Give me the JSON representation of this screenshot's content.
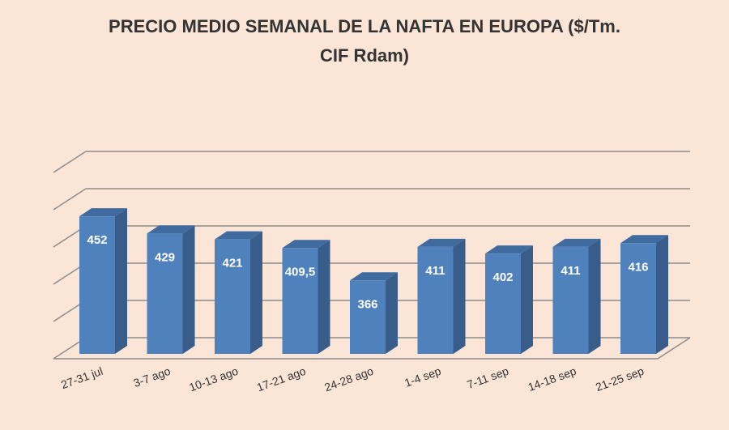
{
  "chart_data": {
    "type": "bar",
    "title_line1": "PRECIO MEDIO SEMANAL DE LA NAFTA EN EUROPA ($/Tm.",
    "title_line2": "CIF Rdam)",
    "categories": [
      "27-31 jul",
      "3-7 ago",
      "10-13 ago",
      "17-21 ago",
      "24-28 ago",
      "1-4 sep",
      "7-11 sep",
      "14-18 sep",
      "21-25 sep"
    ],
    "values": [
      452,
      429,
      421,
      409.5,
      366,
      411,
      402,
      411,
      416
    ],
    "value_labels": [
      "452",
      "429",
      "421",
      "409,5",
      "366",
      "411",
      "402",
      "411",
      "416"
    ],
    "ylim": [
      250,
      500
    ],
    "grid": true,
    "three_d": true,
    "colors": {
      "background": "#fbe5d6",
      "bar_front": "#4f81bd",
      "bar_side": "#385d8a",
      "bar_top": "#3f6b9f",
      "grid": "#8c8c8c",
      "label": "#ffffff"
    }
  }
}
